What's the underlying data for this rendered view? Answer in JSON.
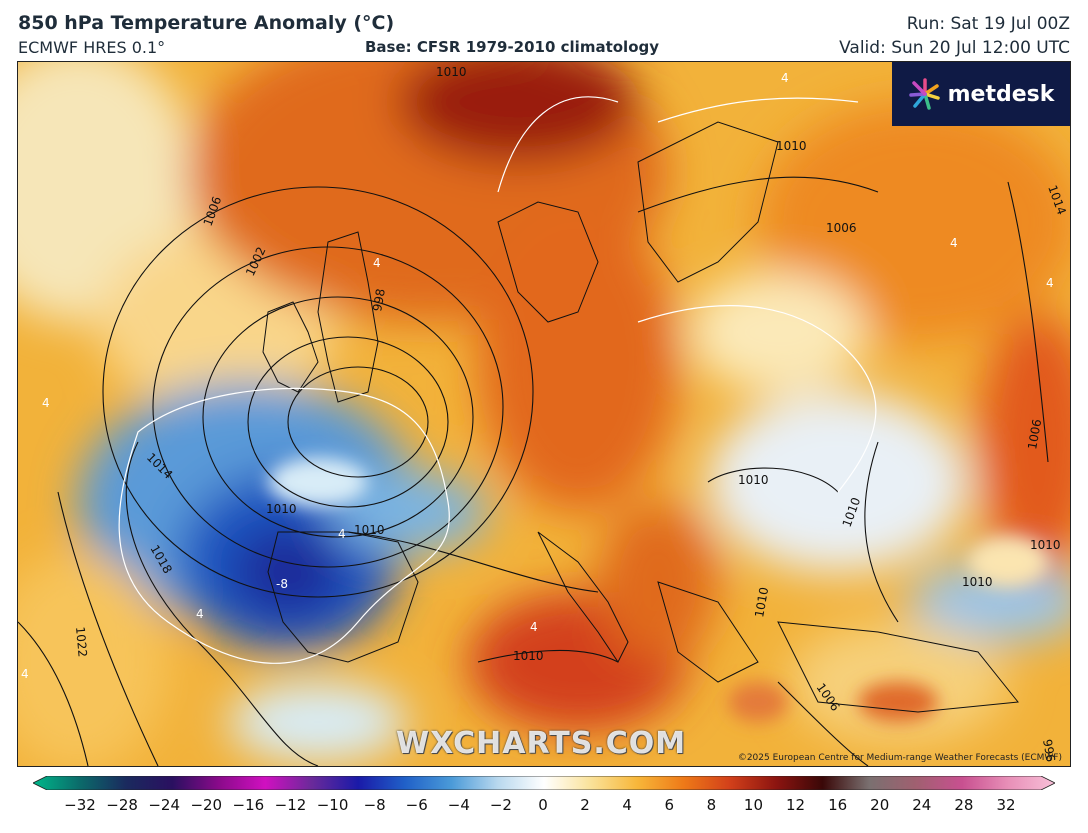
{
  "header": {
    "title": "850 hPa Temperature Anomaly (°C)",
    "model": "ECMWF HRES 0.1°",
    "base": "Base: CFSR 1979-2010 climatology",
    "run": "Run: Sat 19 Jul 00Z",
    "valid": "Valid: Sun 20 Jul 12:00 UTC"
  },
  "brand": {
    "logo_text": "metdesk",
    "watermark": "WXCHARTS.COM",
    "credit": "©2025 European Centre for Medium-range Weather Forecasts (ECMWF)"
  },
  "isobar_labels": [
    "1010",
    "1010",
    "1006",
    "1006",
    "1002",
    "998",
    "1014",
    "1010",
    "1010",
    "1018",
    "1022",
    "1010",
    "1010",
    "1010",
    "1006",
    "1010",
    "1006",
    "1010",
    "1010",
    "1014",
    "996"
  ],
  "anomaly_labels": [
    "4",
    "4",
    "4",
    "4",
    "4",
    "-8",
    "4",
    "4",
    "4",
    "4"
  ],
  "colorbar": {
    "ticks": [
      "−32",
      "−28",
      "−24",
      "−20",
      "−16",
      "−12",
      "−10",
      "−8",
      "−6",
      "−4",
      "−2",
      "0",
      "2",
      "4",
      "6",
      "8",
      "10",
      "12",
      "16",
      "20",
      "24",
      "28",
      "32"
    ],
    "stops": [
      "#00b88a",
      "#0b6b6a",
      "#1a2a5e",
      "#2a1060",
      "#8a0a8a",
      "#d010c0",
      "#6a2a9a",
      "#1a1aa8",
      "#2060c8",
      "#4a9ad8",
      "#b8d8ee",
      "#ffffff",
      "#fae29a",
      "#f7b73a",
      "#ee7a18",
      "#d2401a",
      "#8c1410",
      "#3a0808",
      "#7a7070",
      "#a06070",
      "#c85090",
      "#e890b8",
      "#f8c0d8"
    ]
  }
}
